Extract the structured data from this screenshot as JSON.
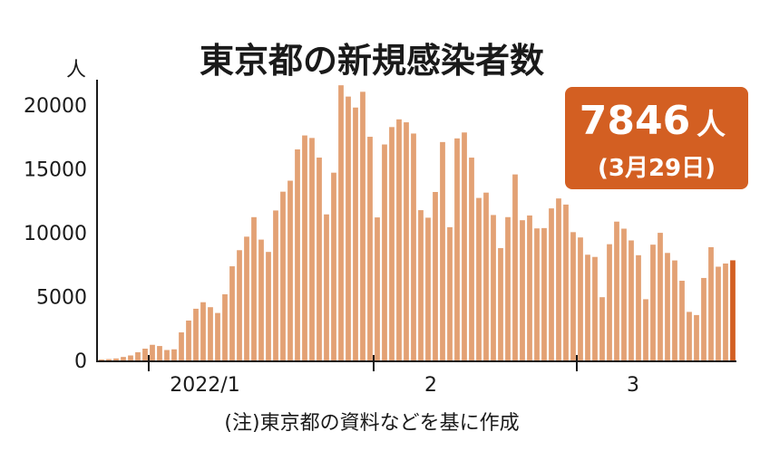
{
  "chart_data": {
    "type": "bar",
    "title": "東京都の新規感染者数",
    "ylabel": "人",
    "ylim": [
      0,
      22000
    ],
    "y_ticks": [
      "0",
      "5000",
      "10000",
      "15000",
      "20000"
    ],
    "y_tick_values": [
      0,
      5000,
      10000,
      15000,
      20000
    ],
    "x_ticks": [
      "2022/1",
      "2",
      "3"
    ],
    "x_tick_day_index": [
      7,
      38,
      66
    ],
    "grid": false,
    "bar_color": "#e3a174",
    "highlight_color": "#d35f22",
    "highlight_index": 87,
    "values": [
      76,
      103,
      151,
      272,
      390,
      641,
      922,
      1224,
      1129,
      816,
      870,
      2198,
      3124,
      4051,
      4561,
      4172,
      3719,
      5185,
      7377,
      8638,
      9699,
      11227,
      9468,
      8503,
      11751,
      13224,
      14086,
      16538,
      17631,
      17433,
      15895,
      11444,
      14713,
      21562,
      20678,
      19818,
      21052,
      17526,
      11207,
      16924,
      18287,
      18891,
      18660,
      17781,
      11775,
      11185,
      13200,
      17113,
      10442,
      17400,
      17864,
      15894,
      12733,
      13150,
      11395,
      8805,
      11229,
      14576,
      10987,
      11360,
      10345,
      10371,
      11914,
      12693,
      12214,
      10053,
      9637,
      8283,
      8111,
      4955,
      9108,
      10878,
      10326,
      9405,
      8245,
      4796,
      9072,
      10000,
      8424,
      7836,
      6244,
      3804,
      3556,
      6462,
      8875,
      7346,
      7594,
      7846
    ],
    "callout": {
      "value": "7846",
      "unit": "人",
      "date": "(3月29日)"
    },
    "note": "(注)東京都の資料などを基に作成"
  }
}
